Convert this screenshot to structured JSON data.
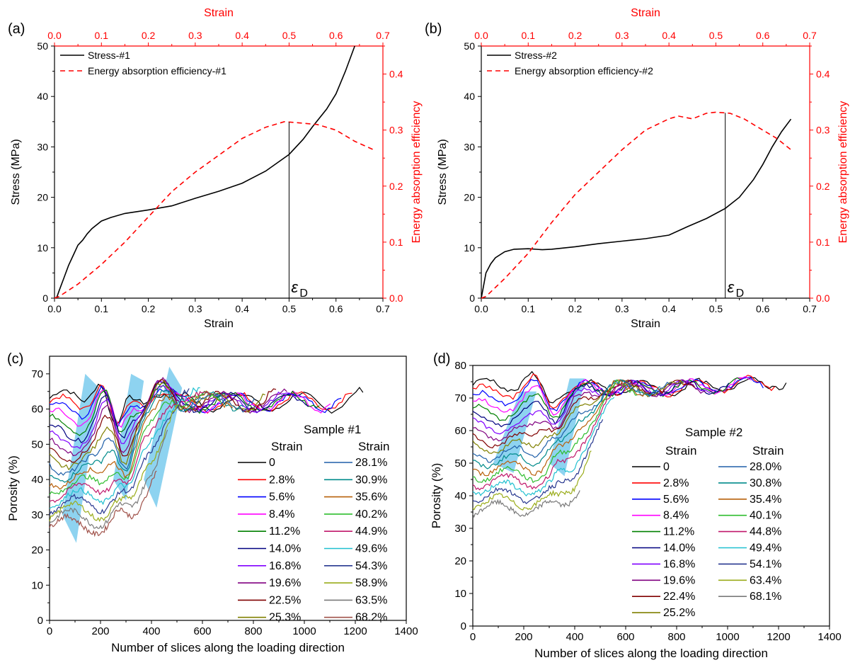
{
  "chart_data": [
    {
      "panel": "(a)",
      "type": "line",
      "xlabel": "Strain",
      "x2label": "Strain",
      "ylabel": "Stress (MPa)",
      "y2label": "Energy absorption efficiency",
      "xlim": [
        0,
        0.7
      ],
      "ylim": [
        0,
        50
      ],
      "y2lim": [
        0,
        0.45
      ],
      "xticks": [
        "0.0",
        "0.1",
        "0.2",
        "0.3",
        "0.4",
        "0.5",
        "0.6",
        "0.7"
      ],
      "yticks": [
        "0",
        "10",
        "20",
        "30",
        "40",
        "50"
      ],
      "y2ticks": [
        "0.0",
        "0.1",
        "0.2",
        "0.3",
        "0.4"
      ],
      "legend_position": "top-left",
      "grid": false,
      "series": [
        {
          "name": "Stress-#1",
          "axis": "left",
          "color": "#000000",
          "dash": "solid",
          "x": [
            0,
            0.005,
            0.01,
            0.02,
            0.03,
            0.04,
            0.05,
            0.06,
            0.07,
            0.08,
            0.1,
            0.12,
            0.15,
            0.2,
            0.25,
            0.3,
            0.35,
            0.4,
            0.45,
            0.5,
            0.53,
            0.55,
            0.58,
            0.6,
            0.62,
            0.64
          ],
          "y": [
            0,
            0.2,
            1.5,
            4,
            6.5,
            8.5,
            10.5,
            11.5,
            12.8,
            13.8,
            15.3,
            16,
            16.8,
            17.5,
            18.3,
            19.8,
            21.2,
            22.8,
            25.2,
            28.5,
            31.5,
            34,
            37.5,
            40.5,
            45,
            50
          ]
        },
        {
          "name": "Energy absorption efficiency-#1",
          "axis": "right",
          "color": "#ff0000",
          "dash": "dashed",
          "x": [
            0,
            0.01,
            0.05,
            0.1,
            0.15,
            0.2,
            0.25,
            0.3,
            0.35,
            0.4,
            0.45,
            0.49,
            0.52,
            0.56,
            0.6,
            0.64,
            0.68
          ],
          "y": [
            0,
            0.003,
            0.025,
            0.06,
            0.1,
            0.145,
            0.19,
            0.225,
            0.255,
            0.285,
            0.305,
            0.315,
            0.313,
            0.31,
            0.3,
            0.28,
            0.265
          ]
        }
      ],
      "annotations": [
        {
          "text": "ε",
          "sub": "D",
          "x": 0.5
        }
      ]
    },
    {
      "panel": "(b)",
      "type": "line",
      "xlabel": "Strain",
      "x2label": "Strain",
      "ylabel": "Stress (MPa)",
      "y2label": "Energy absorption efficiency",
      "xlim": [
        0,
        0.7
      ],
      "ylim": [
        0,
        50
      ],
      "y2lim": [
        0,
        0.45
      ],
      "xticks": [
        "0.0",
        "0.1",
        "0.2",
        "0.3",
        "0.4",
        "0.5",
        "0.6",
        "0.7"
      ],
      "yticks": [
        "0",
        "10",
        "20",
        "30",
        "40",
        "50"
      ],
      "y2ticks": [
        "0.0",
        "0.1",
        "0.2",
        "0.3",
        "0.4"
      ],
      "legend_position": "top-left",
      "grid": false,
      "series": [
        {
          "name": "Stress-#2",
          "axis": "left",
          "color": "#000000",
          "dash": "solid",
          "x": [
            0,
            0.005,
            0.01,
            0.02,
            0.03,
            0.05,
            0.07,
            0.1,
            0.13,
            0.15,
            0.2,
            0.25,
            0.3,
            0.35,
            0.4,
            0.44,
            0.48,
            0.52,
            0.55,
            0.58,
            0.6,
            0.62,
            0.64,
            0.66
          ],
          "y": [
            0,
            2.5,
            5,
            6.8,
            8,
            9.2,
            9.7,
            9.8,
            9.6,
            9.7,
            10.2,
            10.8,
            11.3,
            11.8,
            12.5,
            14.2,
            15.8,
            17.8,
            20,
            23.5,
            26.5,
            30,
            33,
            35.5
          ]
        },
        {
          "name": "Energy absorption efficiency-#2",
          "axis": "right",
          "color": "#ff0000",
          "dash": "dashed",
          "x": [
            0,
            0.01,
            0.05,
            0.1,
            0.15,
            0.2,
            0.25,
            0.3,
            0.35,
            0.4,
            0.42,
            0.45,
            0.48,
            0.5,
            0.53,
            0.56,
            0.6,
            0.63,
            0.66
          ],
          "y": [
            0,
            0.003,
            0.035,
            0.08,
            0.135,
            0.185,
            0.225,
            0.265,
            0.3,
            0.32,
            0.325,
            0.32,
            0.33,
            0.332,
            0.33,
            0.32,
            0.3,
            0.285,
            0.265
          ]
        }
      ],
      "annotations": [
        {
          "text": "ε",
          "sub": "D",
          "x": 0.52
        }
      ]
    },
    {
      "panel": "(c)",
      "type": "line",
      "xlabel": "Number of slices along the loading direction",
      "ylabel": "Porosity (%)",
      "xlim": [
        0,
        1400
      ],
      "ylim": [
        0,
        75
      ],
      "xticks": [
        "0",
        "200",
        "400",
        "600",
        "800",
        "1000",
        "1200",
        "1400"
      ],
      "yticks": [
        "0",
        "10",
        "20",
        "30",
        "40",
        "50",
        "60",
        "70"
      ],
      "legend_title": "Sample #1",
      "legend_header": "Strain",
      "legend_position": "right",
      "grid": false,
      "series": [
        {
          "name": "0",
          "color": "#000000"
        },
        {
          "name": "2.8%",
          "color": "#ff0000"
        },
        {
          "name": "5.6%",
          "color": "#0000ff"
        },
        {
          "name": "8.4%",
          "color": "#ff00ff"
        },
        {
          "name": "11.2%",
          "color": "#008000"
        },
        {
          "name": "14.0%",
          "color": "#000080"
        },
        {
          "name": "16.8%",
          "color": "#8000ff"
        },
        {
          "name": "19.6%",
          "color": "#800080"
        },
        {
          "name": "22.5%",
          "color": "#800000"
        },
        {
          "name": "25.3%",
          "color": "#808000"
        },
        {
          "name": "28.1%",
          "color": "#1f5fa8"
        },
        {
          "name": "30.9%",
          "color": "#008b8b"
        },
        {
          "name": "35.6%",
          "color": "#b8600a"
        },
        {
          "name": "40.2%",
          "color": "#2ebd2e"
        },
        {
          "name": "44.9%",
          "color": "#c0186b"
        },
        {
          "name": "49.6%",
          "color": "#20c0d0"
        },
        {
          "name": "54.3%",
          "color": "#283890"
        },
        {
          "name": "58.9%",
          "color": "#9aac1a"
        },
        {
          "name": "63.5%",
          "color": "#7a7a7a"
        },
        {
          "name": "68.2%",
          "color": "#a0524a"
        }
      ]
    },
    {
      "panel": "(d)",
      "type": "line",
      "xlabel": "Number of slices along the loading direction",
      "ylabel": "Porosity (%)",
      "xlim": [
        0,
        1400
      ],
      "ylim": [
        0,
        80
      ],
      "xticks": [
        "0",
        "200",
        "400",
        "600",
        "800",
        "1000",
        "1200",
        "1400"
      ],
      "yticks": [
        "0",
        "10",
        "20",
        "30",
        "40",
        "50",
        "60",
        "70",
        "80"
      ],
      "legend_title": "Sample #2",
      "legend_header": "Strain",
      "legend_position": "right",
      "grid": false,
      "series": [
        {
          "name": "0",
          "color": "#000000"
        },
        {
          "name": "2.8%",
          "color": "#ff0000"
        },
        {
          "name": "5.6%",
          "color": "#0000ff"
        },
        {
          "name": "8.4%",
          "color": "#ff00ff"
        },
        {
          "name": "11.2%",
          "color": "#008000"
        },
        {
          "name": "14.0%",
          "color": "#000080"
        },
        {
          "name": "16.8%",
          "color": "#8000ff"
        },
        {
          "name": "19.6%",
          "color": "#800080"
        },
        {
          "name": "22.4%",
          "color": "#800000"
        },
        {
          "name": "25.2%",
          "color": "#808000"
        },
        {
          "name": "28.0%",
          "color": "#1f5fa8"
        },
        {
          "name": "30.8%",
          "color": "#008b8b"
        },
        {
          "name": "35.4%",
          "color": "#b8600a"
        },
        {
          "name": "40.1%",
          "color": "#2ebd2e"
        },
        {
          "name": "44.8%",
          "color": "#c0186b"
        },
        {
          "name": "49.4%",
          "color": "#20c0d0"
        },
        {
          "name": "54.1%",
          "color": "#283890"
        },
        {
          "name": "63.4%",
          "color": "#9aac1a"
        },
        {
          "name": "68.1%",
          "color": "#7a7a7a"
        }
      ]
    }
  ]
}
